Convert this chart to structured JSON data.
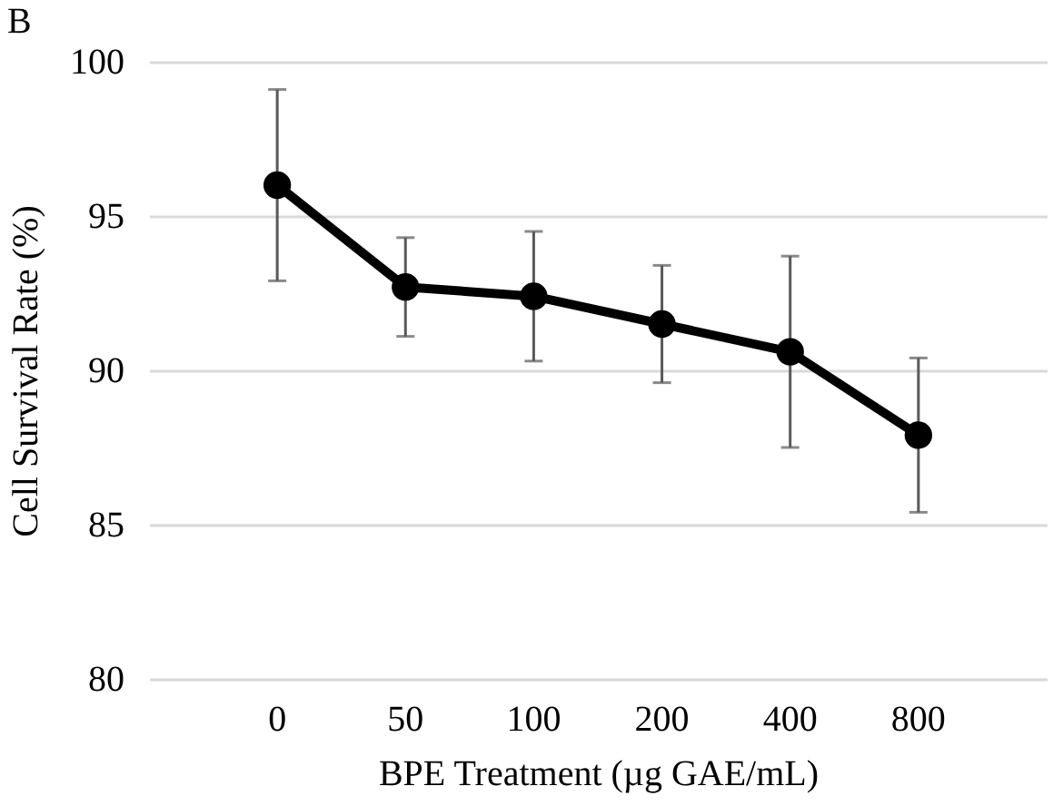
{
  "chart_data": {
    "type": "line",
    "annotations": [
      "B"
    ],
    "xlabel": "BPE Treatment (µg GAE/mL)",
    "ylabel": "Cell Survival Rate (%)",
    "categories": [
      "0",
      "50",
      "100",
      "200",
      "400",
      "800"
    ],
    "series": [
      {
        "color": "#000000",
        "values": [
          96.0,
          92.7,
          92.4,
          91.5,
          90.6,
          87.9
        ],
        "errors": [
          3.1,
          1.6,
          2.1,
          1.9,
          3.1,
          2.5
        ]
      }
    ],
    "ylim": [
      80,
      100
    ],
    "yticks": [
      80,
      85,
      90,
      95,
      100
    ],
    "grid": "y",
    "marker": "circle",
    "line_style": "solid"
  }
}
